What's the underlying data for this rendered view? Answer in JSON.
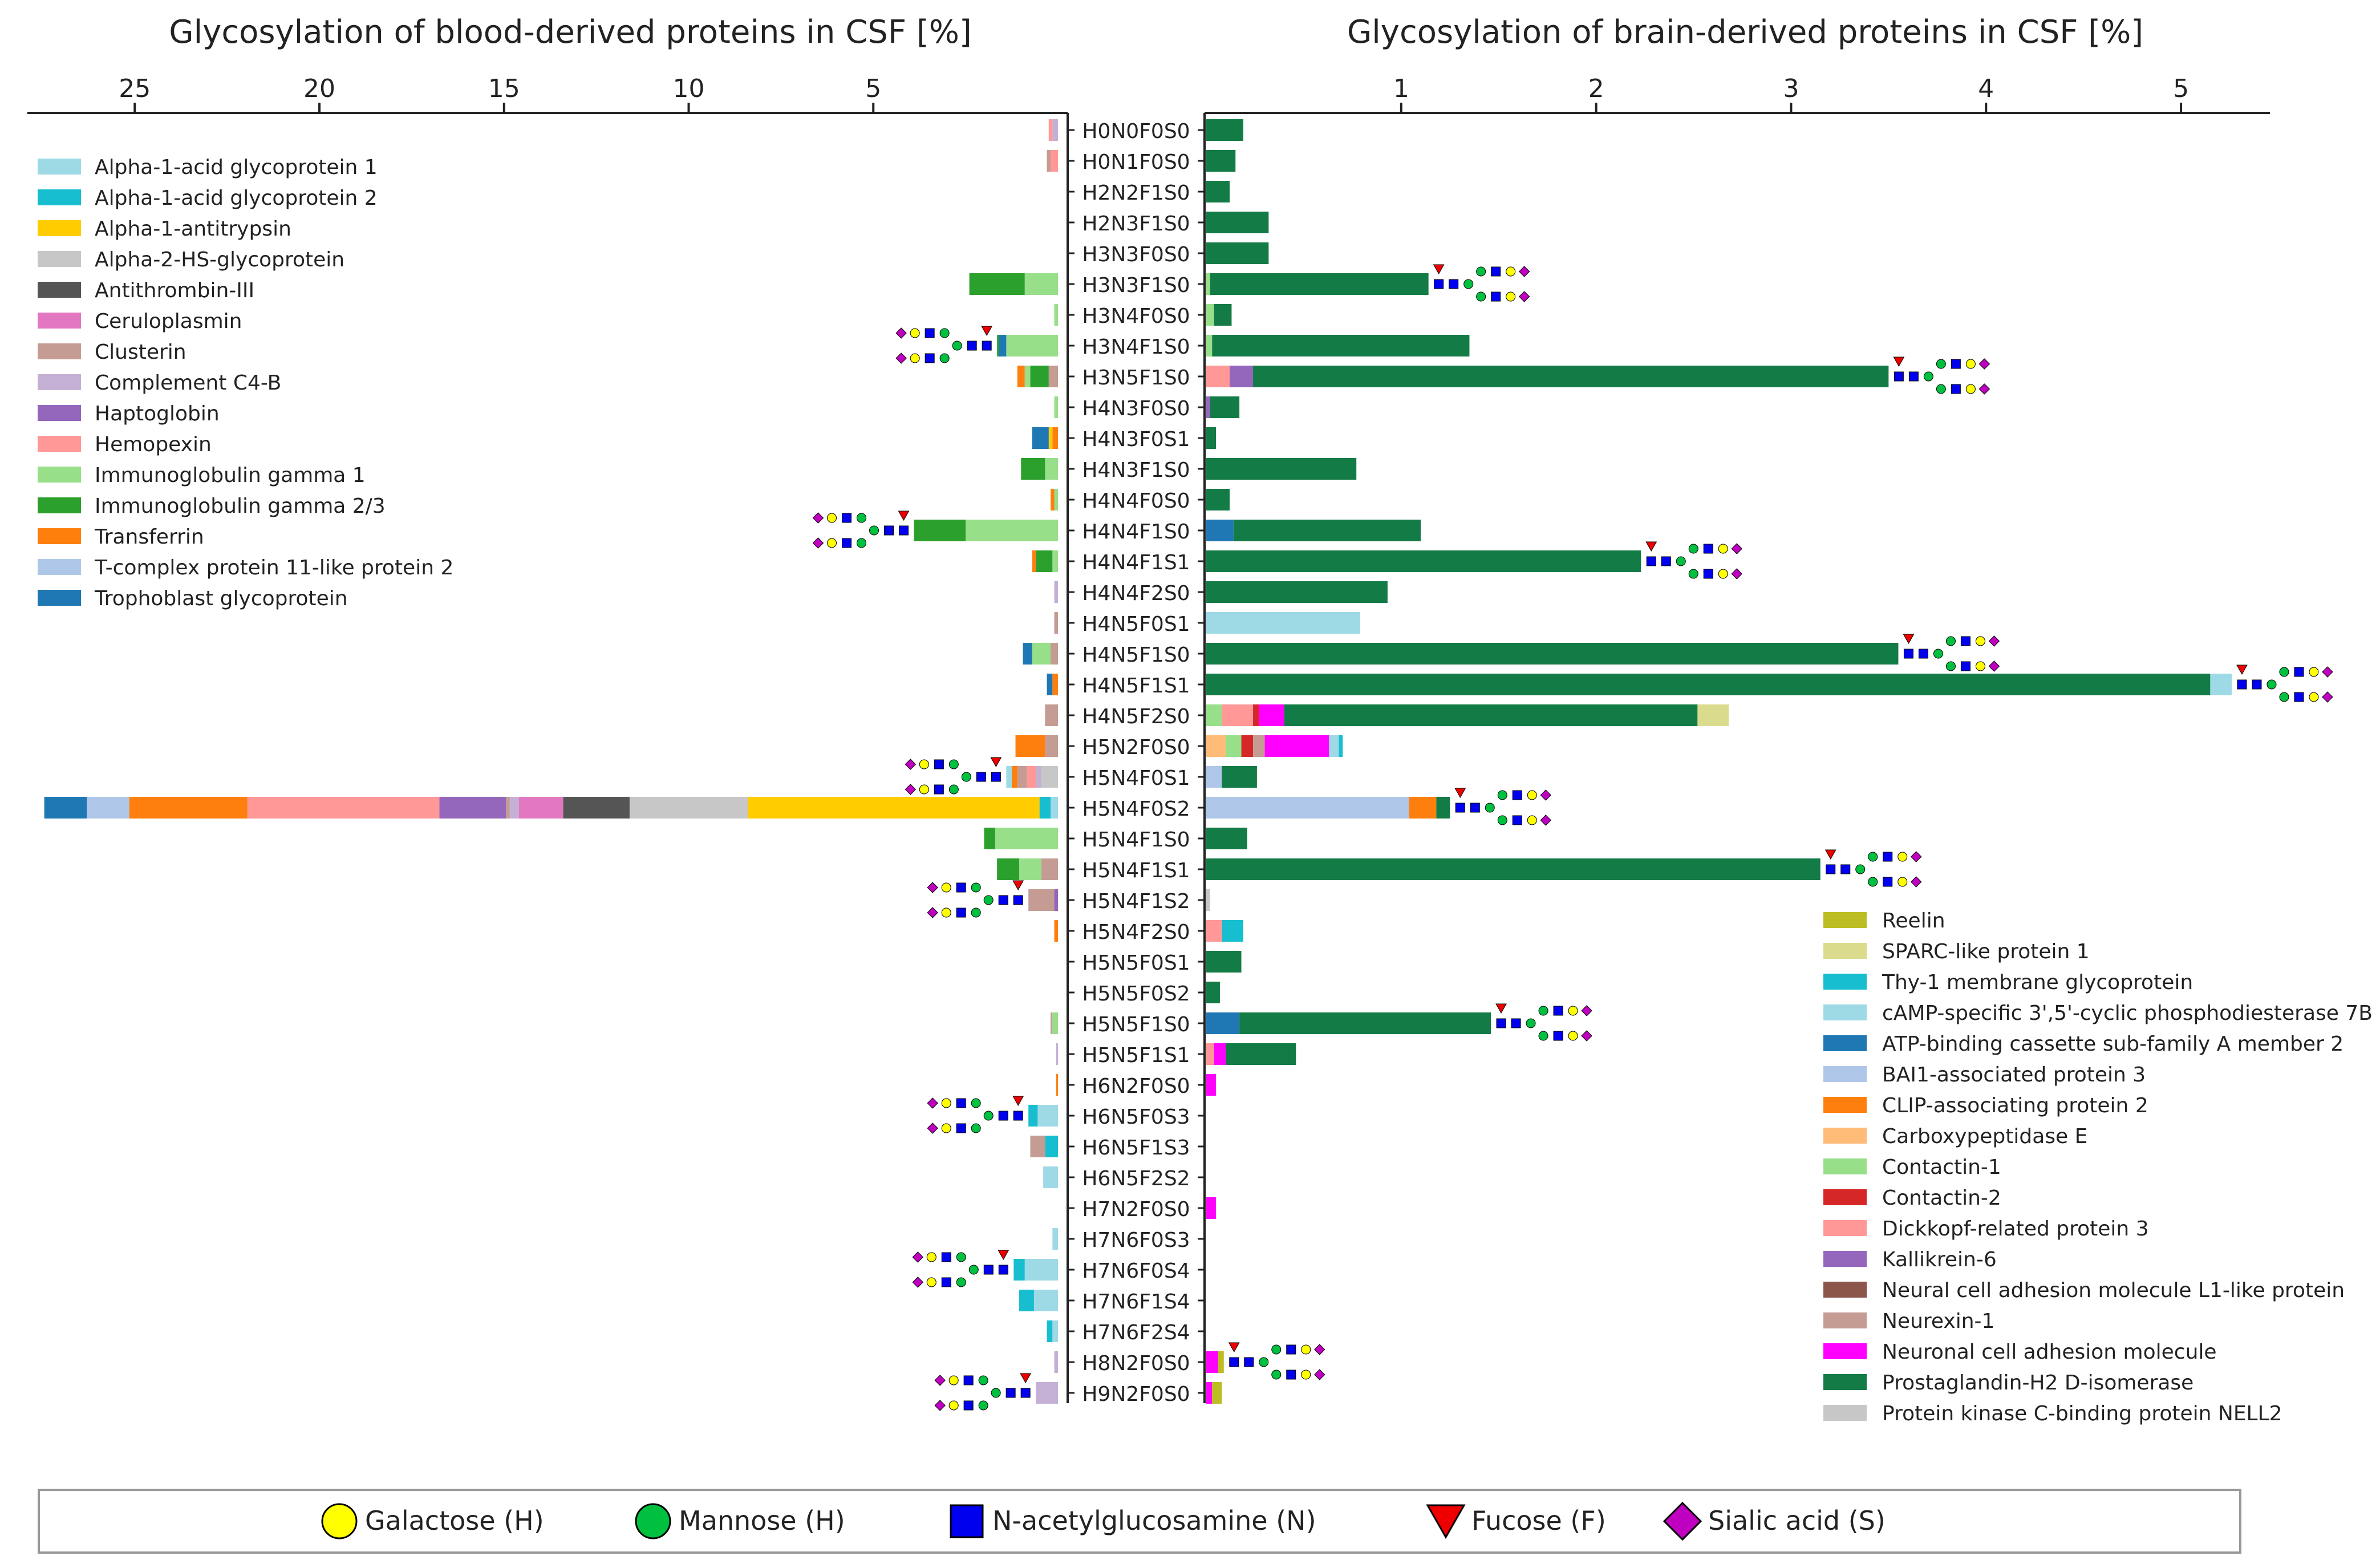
{
  "chart_data": {
    "type": "bar",
    "orientation": "horizontal-stacked-butterfly",
    "left_panel": {
      "title": "Glycosylation of blood-derived proteins in CSF [%]",
      "xlim": [
        0,
        27.8
      ],
      "ticks": [
        25,
        20,
        15,
        10,
        5
      ],
      "direction": "right-to-left",
      "legend_position": "top-left"
    },
    "right_panel": {
      "title": "Glycosylation of brain-derived proteins in CSF [%]",
      "xlim": [
        0,
        5.5
      ],
      "ticks": [
        1,
        2,
        3,
        4,
        5
      ],
      "direction": "left-to-right",
      "legend_position": "bottom-right"
    },
    "categories": [
      "H0N0F0S0",
      "H0N1F0S0",
      "H2N2F1S0",
      "H2N3F1S0",
      "H3N3F0S0",
      "H3N3F1S0",
      "H3N4F0S0",
      "H3N4F1S0",
      "H3N5F1S0",
      "H4N3F0S0",
      "H4N3F0S1",
      "H4N3F1S0",
      "H4N4F0S0",
      "H4N4F1S0",
      "H4N4F1S1",
      "H4N4F2S0",
      "H4N5F0S1",
      "H4N5F1S0",
      "H4N5F1S1",
      "H4N5F2S0",
      "H5N2F0S0",
      "H5N4F0S1",
      "H5N4F0S2",
      "H5N4F1S0",
      "H5N4F1S1",
      "H5N4F1S2",
      "H5N4F2S0",
      "H5N5F0S1",
      "H5N5F0S2",
      "H5N5F1S0",
      "H5N5F1S1",
      "H6N2F0S0",
      "H6N5F0S3",
      "H6N5F1S3",
      "H6N5F2S2",
      "H7N2F0S0",
      "H7N6F0S3",
      "H7N6F0S4",
      "H7N6F1S4",
      "H7N6F2S4",
      "H8N2F0S0",
      "H9N2F0S0"
    ],
    "left_series": [
      {
        "name": "Alpha-1-acid glycoprotein 1",
        "color": "#9edae5"
      },
      {
        "name": "Alpha-1-acid glycoprotein 2",
        "color": "#17becf"
      },
      {
        "name": "Alpha-1-antitrypsin",
        "color": "#ffcc00"
      },
      {
        "name": "Alpha-2-HS-glycoprotein",
        "color": "#c7c7c7"
      },
      {
        "name": "Antithrombin-III",
        "color": "#555555"
      },
      {
        "name": "Ceruloplasmin",
        "color": "#e377c2"
      },
      {
        "name": "Clusterin",
        "color": "#c49c94"
      },
      {
        "name": "Complement C4-B",
        "color": "#c5b0d5"
      },
      {
        "name": "Haptoglobin",
        "color": "#9467bd"
      },
      {
        "name": "Hemopexin",
        "color": "#ff9896"
      },
      {
        "name": "Immunoglobulin gamma 1",
        "color": "#98df8a"
      },
      {
        "name": "Immunoglobulin gamma 2/3",
        "color": "#2ca02c"
      },
      {
        "name": "Transferrin",
        "color": "#ff7f0e"
      },
      {
        "name": "T-complex protein 11-like protein 2",
        "color": "#aec7e8"
      },
      {
        "name": "Trophoblast glycoprotein",
        "color": "#1f77b4"
      }
    ],
    "right_series": [
      {
        "name": "Reelin",
        "color": "#bcbd22"
      },
      {
        "name": "SPARC-like protein 1",
        "color": "#dbdb8d"
      },
      {
        "name": "Thy-1 membrane glycoprotein",
        "color": "#17becf"
      },
      {
        "name": "cAMP-specific 3',5'-cyclic phosphodiesterase 7B",
        "color": "#9edae5"
      },
      {
        "name": "ATP-binding cassette sub-family A member 2",
        "color": "#1f77b4"
      },
      {
        "name": "BAI1-associated protein 3",
        "color": "#aec7e8"
      },
      {
        "name": "CLIP-associating protein 2",
        "color": "#ff7f0e"
      },
      {
        "name": "Carboxypeptidase E",
        "color": "#ffbb78"
      },
      {
        "name": "Contactin-1",
        "color": "#98df8a"
      },
      {
        "name": "Contactin-2",
        "color": "#d62728"
      },
      {
        "name": "Dickkopf-related protein 3",
        "color": "#ff9896"
      },
      {
        "name": "Kallikrein-6",
        "color": "#9467bd"
      },
      {
        "name": "Neural cell adhesion molecule L1-like protein",
        "color": "#8c564b"
      },
      {
        "name": "Neurexin-1",
        "color": "#c49c94"
      },
      {
        "name": "Neuronal cell adhesion molecule",
        "color": "#ff00ff"
      },
      {
        "name": "Prostaglandin-H2 D-isomerase",
        "color": "#137b45"
      },
      {
        "name": "Protein kinase C-binding protein NELL2",
        "color": "#c7c7c7"
      }
    ],
    "left_values": [
      [
        [
          "Complement C4-B",
          0.15
        ],
        [
          "Hemopexin",
          0.1
        ]
      ],
      [
        [
          "Hemopexin",
          0.2
        ],
        [
          "Clusterin",
          0.1
        ]
      ],
      [],
      [],
      [],
      [
        [
          "Immunoglobulin gamma 1",
          0.9
        ],
        [
          "Immunoglobulin gamma 2/3",
          1.5
        ]
      ],
      [
        [
          "Immunoglobulin gamma 1",
          0.1
        ]
      ],
      [
        [
          "Immunoglobulin gamma 1",
          1.4
        ],
        [
          "Trophoblast glycoprotein",
          0.2
        ],
        [
          "Immunoglobulin gamma 2/3",
          0.05
        ]
      ],
      [
        [
          "Clusterin",
          0.25
        ],
        [
          "Immunoglobulin gamma 2/3",
          0.5
        ],
        [
          "Immunoglobulin gamma 1",
          0.15
        ],
        [
          "Transferrin",
          0.2
        ]
      ],
      [
        [
          "Immunoglobulin gamma 1",
          0.1
        ]
      ],
      [
        [
          "Transferrin",
          0.15
        ],
        [
          "Alpha-1-antitrypsin",
          0.1
        ],
        [
          "Trophoblast glycoprotein",
          0.45
        ]
      ],
      [
        [
          "Immunoglobulin gamma 1",
          0.35
        ],
        [
          "Immunoglobulin gamma 2/3",
          0.65
        ]
      ],
      [
        [
          "Immunoglobulin gamma 1",
          0.1
        ],
        [
          "Transferrin",
          0.1
        ]
      ],
      [
        [
          "Immunoglobulin gamma 1",
          2.5
        ],
        [
          "Immunoglobulin gamma 2/3",
          1.4
        ]
      ],
      [
        [
          "Immunoglobulin gamma 1",
          0.15
        ],
        [
          "Immunoglobulin gamma 2/3",
          0.45
        ],
        [
          "Transferrin",
          0.1
        ]
      ],
      [
        [
          "Complement C4-B",
          0.1
        ]
      ],
      [
        [
          "Clusterin",
          0.1
        ]
      ],
      [
        [
          "Clusterin",
          0.2
        ],
        [
          "Immunoglobulin gamma 1",
          0.5
        ],
        [
          "Trophoblast glycoprotein",
          0.25
        ]
      ],
      [
        [
          "Transferrin",
          0.15
        ],
        [
          "Trophoblast glycoprotein",
          0.15
        ]
      ],
      [
        [
          "Clusterin",
          0.35
        ]
      ],
      [
        [
          "Clusterin",
          0.35
        ],
        [
          "Transferrin",
          0.8
        ]
      ],
      [
        [
          "Alpha-2-HS-glycoprotein",
          0.45
        ],
        [
          "Complement C4-B",
          0.15
        ],
        [
          "Hemopexin",
          0.25
        ],
        [
          "Clusterin",
          0.25
        ],
        [
          "Transferrin",
          0.15
        ],
        [
          "Alpha-1-acid glycoprotein 1",
          0.15
        ]
      ],
      [
        [
          "Alpha-1-acid glycoprotein 1",
          0.2
        ],
        [
          "Alpha-1-acid glycoprotein 2",
          0.3
        ],
        [
          "Alpha-1-antitrypsin",
          7.9
        ],
        [
          "Alpha-2-HS-glycoprotein",
          3.2
        ],
        [
          "Antithrombin-III",
          1.8
        ],
        [
          "Ceruloplasmin",
          1.2
        ],
        [
          "Complement C4-B",
          0.25
        ],
        [
          "Clusterin",
          0.1
        ],
        [
          "Haptoglobin",
          1.8
        ],
        [
          "Hemopexin",
          5.2
        ],
        [
          "Transferrin",
          3.2
        ],
        [
          "T-complex protein 11-like protein 2",
          1.15
        ],
        [
          "Trophoblast glycoprotein",
          1.15
        ]
      ],
      [
        [
          "Immunoglobulin gamma 1",
          1.7
        ],
        [
          "Immunoglobulin gamma 2/3",
          0.3
        ]
      ],
      [
        [
          "Clusterin",
          0.45
        ],
        [
          "Immunoglobulin gamma 1",
          0.6
        ],
        [
          "Immunoglobulin gamma 2/3",
          0.6
        ]
      ],
      [
        [
          "Haptoglobin",
          0.1
        ],
        [
          "Clusterin",
          0.7
        ]
      ],
      [
        [
          "Transferrin",
          0.1
        ]
      ],
      [],
      [],
      [
        [
          "Immunoglobulin gamma 1",
          0.15
        ],
        [
          "Clusterin",
          0.05
        ]
      ],
      [
        [
          "Complement C4-B",
          0.05
        ]
      ],
      [
        [
          "Transferrin",
          0.05
        ]
      ],
      [
        [
          "Alpha-1-acid glycoprotein 1",
          0.55
        ],
        [
          "Alpha-1-acid glycoprotein 2",
          0.25
        ]
      ],
      [
        [
          "Alpha-1-acid glycoprotein 2",
          0.35
        ],
        [
          "Clusterin",
          0.4
        ]
      ],
      [
        [
          "Alpha-1-acid glycoprotein 1",
          0.4
        ]
      ],
      [],
      [
        [
          "Alpha-1-acid glycoprotein 1",
          0.15
        ]
      ],
      [
        [
          "Alpha-1-acid glycoprotein 1",
          0.9
        ],
        [
          "Alpha-1-acid glycoprotein 2",
          0.3
        ]
      ],
      [
        [
          "Alpha-1-acid glycoprotein 1",
          0.65
        ],
        [
          "Alpha-1-acid glycoprotein 2",
          0.4
        ]
      ],
      [
        [
          "Alpha-1-acid glycoprotein 1",
          0.15
        ],
        [
          "Alpha-1-acid glycoprotein 2",
          0.15
        ]
      ],
      [
        [
          "Complement C4-B",
          0.1
        ]
      ],
      [
        [
          "Complement C4-B",
          0.6
        ]
      ]
    ],
    "right_values": [
      [
        [
          "Prostaglandin-H2 D-isomerase",
          0.19
        ]
      ],
      [
        [
          "Prostaglandin-H2 D-isomerase",
          0.15
        ]
      ],
      [
        [
          "Prostaglandin-H2 D-isomerase",
          0.12
        ]
      ],
      [
        [
          "Prostaglandin-H2 D-isomerase",
          0.32
        ]
      ],
      [
        [
          "Prostaglandin-H2 D-isomerase",
          0.32
        ]
      ],
      [
        [
          "Contactin-1",
          0.02
        ],
        [
          "Prostaglandin-H2 D-isomerase",
          1.12
        ]
      ],
      [
        [
          "Contactin-1",
          0.04
        ],
        [
          "Prostaglandin-H2 D-isomerase",
          0.09
        ]
      ],
      [
        [
          "Contactin-1",
          0.03
        ],
        [
          "Prostaglandin-H2 D-isomerase",
          1.32
        ]
      ],
      [
        [
          "Dickkopf-related protein 3",
          0.12
        ],
        [
          "Kallikrein-6",
          0.12
        ],
        [
          "Prostaglandin-H2 D-isomerase",
          3.26
        ]
      ],
      [
        [
          "Kallikrein-6",
          0.02
        ],
        [
          "Prostaglandin-H2 D-isomerase",
          0.15
        ]
      ],
      [
        [
          "Prostaglandin-H2 D-isomerase",
          0.05
        ]
      ],
      [
        [
          "Prostaglandin-H2 D-isomerase",
          0.77
        ]
      ],
      [
        [
          "Prostaglandin-H2 D-isomerase",
          0.12
        ]
      ],
      [
        [
          "ATP-binding cassette sub-family A member 2",
          0.14
        ],
        [
          "Prostaglandin-H2 D-isomerase",
          0.96
        ]
      ],
      [
        [
          "Prostaglandin-H2 D-isomerase",
          2.23
        ]
      ],
      [
        [
          "Prostaglandin-H2 D-isomerase",
          0.93
        ]
      ],
      [
        [
          "cAMP-specific 3',5'-cyclic phosphodiesterase 7B",
          0.79
        ]
      ],
      [
        [
          "Prostaglandin-H2 D-isomerase",
          3.55
        ]
      ],
      [
        [
          "Prostaglandin-H2 D-isomerase",
          5.15
        ],
        [
          "cAMP-specific 3',5'-cyclic phosphodiesterase 7B",
          0.11
        ]
      ],
      [
        [
          "Contactin-1",
          0.08
        ],
        [
          "Dickkopf-related protein 3",
          0.16
        ],
        [
          "Contactin-2",
          0.03
        ],
        [
          "Neuronal cell adhesion molecule",
          0.13
        ],
        [
          "Prostaglandin-H2 D-isomerase",
          2.12
        ],
        [
          "SPARC-like protein 1",
          0.16
        ]
      ],
      [
        [
          "Carboxypeptidase E",
          0.1
        ],
        [
          "Contactin-1",
          0.08
        ],
        [
          "Contactin-2",
          0.06
        ],
        [
          "Neurexin-1",
          0.06
        ],
        [
          "Neuronal cell adhesion molecule",
          0.33
        ],
        [
          "cAMP-specific 3',5'-cyclic phosphodiesterase 7B",
          0.05
        ],
        [
          "Thy-1 membrane glycoprotein",
          0.02
        ]
      ],
      [
        [
          "BAI1-associated protein 3",
          0.08
        ],
        [
          "Prostaglandin-H2 D-isomerase",
          0.18
        ]
      ],
      [
        [
          "BAI1-associated protein 3",
          1.04
        ],
        [
          "CLIP-associating protein 2",
          0.14
        ],
        [
          "Prostaglandin-H2 D-isomerase",
          0.07
        ]
      ],
      [
        [
          "Prostaglandin-H2 D-isomerase",
          0.21
        ]
      ],
      [
        [
          "Prostaglandin-H2 D-isomerase",
          3.15
        ]
      ],
      [
        [
          "Protein kinase C-binding protein NELL2",
          0.02
        ]
      ],
      [
        [
          "Dickkopf-related protein 3",
          0.08
        ],
        [
          "Thy-1 membrane glycoprotein",
          0.11
        ]
      ],
      [
        [
          "Prostaglandin-H2 D-isomerase",
          0.18
        ]
      ],
      [
        [
          "Prostaglandin-H2 D-isomerase",
          0.07
        ]
      ],
      [
        [
          "ATP-binding cassette sub-family A member 2",
          0.17
        ],
        [
          "Prostaglandin-H2 D-isomerase",
          1.29
        ]
      ],
      [
        [
          "Dickkopf-related protein 3",
          0.04
        ],
        [
          "Neuronal cell adhesion molecule",
          0.06
        ],
        [
          "Prostaglandin-H2 D-isomerase",
          0.36
        ]
      ],
      [
        [
          "Neuronal cell adhesion molecule",
          0.05
        ]
      ],
      [],
      [],
      [],
      [
        [
          "Neuronal cell adhesion molecule",
          0.05
        ]
      ],
      [],
      [],
      [],
      [],
      [
        [
          "Neuronal cell adhesion molecule",
          0.06
        ],
        [
          "Reelin",
          0.03
        ]
      ],
      [
        [
          "Neuronal cell adhesion molecule",
          0.03
        ],
        [
          "Reelin",
          0.05
        ]
      ]
    ],
    "glycan_annotations": {
      "left": [
        "H3N4F1S0",
        "H4N4F1S0",
        "H5N4F0S1",
        "H5N4F1S2",
        "H6N5F0S3",
        "H7N6F0S4",
        "H9N2F0S0"
      ],
      "right": [
        "H3N3F1S0",
        "H3N5F1S0",
        "H4N4F1S1",
        "H4N5F1S0",
        "H4N5F1S1",
        "H5N4F0S2",
        "H5N4F1S1",
        "H5N5F1S0",
        "H8N2F0S0"
      ]
    },
    "symbol_legend": [
      {
        "symbol": "circle",
        "color": "#ffff00",
        "label": "Galactose (H)"
      },
      {
        "symbol": "circle",
        "color": "#00c040",
        "label": "Mannose (H)"
      },
      {
        "symbol": "square",
        "color": "#0000ee",
        "label": "N-acetylglucosamine (N)"
      },
      {
        "symbol": "triangle",
        "color": "#ee0000",
        "label": "Fucose (F)"
      },
      {
        "symbol": "diamond",
        "color": "#c000c0",
        "label": "Sialic acid (S)"
      }
    ]
  }
}
